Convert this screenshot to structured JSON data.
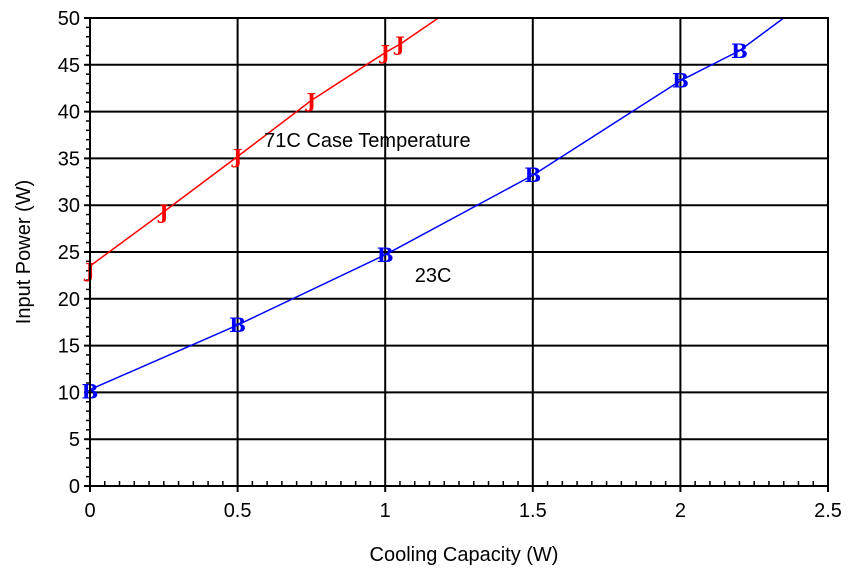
{
  "chart_data": {
    "type": "scatter",
    "title": "",
    "xlabel": "Cooling Capacity (W)",
    "ylabel": "Input Power (W)",
    "xlim": [
      0,
      2.5
    ],
    "ylim": [
      0,
      50
    ],
    "xticks": [
      "0",
      "0.5",
      "1",
      "1.5",
      "2",
      "2.5"
    ],
    "yticks": [
      "0",
      "5",
      "10",
      "15",
      "20",
      "25",
      "30",
      "35",
      "40",
      "45",
      "50"
    ],
    "grid": true,
    "series": [
      {
        "marker": "J",
        "color": "#ff0000",
        "x": [
          0,
          0.25,
          0.5,
          0.75,
          1.0,
          1.05
        ],
        "y": [
          23,
          29.3,
          35.2,
          41.2,
          46.3,
          47.2
        ],
        "fit_line": {
          "x": [
            0,
            1.18
          ],
          "y": [
            23.5,
            50
          ]
        }
      },
      {
        "marker": "B",
        "color": "#0000ff",
        "x": [
          0,
          0.5,
          1.0,
          1.5,
          2.0,
          2.2
        ],
        "y": [
          10.1,
          17.2,
          24.7,
          33.2,
          43.3,
          46.5
        ],
        "fit_line": {
          "x": [
            0,
            2.35
          ],
          "y": [
            10.3,
            50
          ]
        }
      }
    ],
    "annotations": [
      {
        "text": "71C Case Temperature",
        "x": 0.59,
        "y": 36.2
      },
      {
        "text": "23C",
        "x": 1.1,
        "y": 21.8
      }
    ]
  }
}
